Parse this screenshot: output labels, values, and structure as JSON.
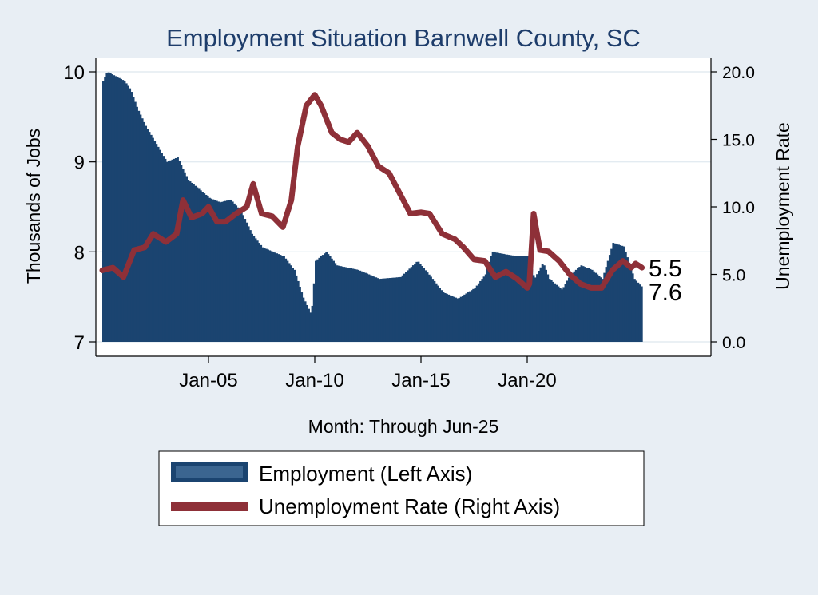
{
  "chart_data": {
    "type": "bar+line",
    "title": "Employment Situation Barnwell  County, SC",
    "xlabel": "Month: Through Jun-25",
    "ylabel_left": "Thousands of Jobs",
    "ylabel_right": "Unemployment Rate",
    "x_ticks": [
      "Jan-05",
      "Jan-10",
      "Jan-15",
      "Jan-20"
    ],
    "y_left_ticks": [
      "7",
      "8",
      "9",
      "10"
    ],
    "y_right_ticks": [
      "0.0",
      "5.0",
      "10.0",
      "15.0",
      "20.0"
    ],
    "ylim_left": [
      7,
      10.2
    ],
    "ylim_right": [
      0,
      20.5
    ],
    "x_range_years": [
      2000.0,
      2025.5
    ],
    "grid": true,
    "legend": {
      "position": "bottom",
      "entries": [
        "Employment (Left Axis)",
        "Unemployment Rate (Right Axis)"
      ]
    },
    "end_labels": {
      "unemployment": "5.5",
      "employment": "7.6"
    },
    "colors": {
      "employment": "#1b4470",
      "unemployment": "#8e3038",
      "title": "#1e3d6b",
      "background": "#e8eef4",
      "plot": "#ffffff"
    },
    "series": [
      {
        "name": "Employment (Left Axis)",
        "axis": "left",
        "points": [
          [
            2000.0,
            9.9
          ],
          [
            2000.2,
            10.0
          ],
          [
            2001.0,
            9.9
          ],
          [
            2001.3,
            9.8
          ],
          [
            2001.6,
            9.6
          ],
          [
            2002.0,
            9.4
          ],
          [
            2002.5,
            9.2
          ],
          [
            2003.0,
            9.0
          ],
          [
            2003.5,
            9.05
          ],
          [
            2004.0,
            8.8
          ],
          [
            2004.5,
            8.7
          ],
          [
            2005.0,
            8.6
          ],
          [
            2005.5,
            8.55
          ],
          [
            2006.0,
            8.58
          ],
          [
            2006.5,
            8.45
          ],
          [
            2007.0,
            8.2
          ],
          [
            2007.5,
            8.05
          ],
          [
            2008.0,
            8.0
          ],
          [
            2008.5,
            7.95
          ],
          [
            2009.0,
            7.8
          ],
          [
            2009.4,
            7.5
          ],
          [
            2009.8,
            7.3
          ],
          [
            2010.0,
            7.9
          ],
          [
            2010.5,
            8.0
          ],
          [
            2011.0,
            7.85
          ],
          [
            2012.0,
            7.8
          ],
          [
            2012.5,
            7.75
          ],
          [
            2013.0,
            7.7
          ],
          [
            2014.0,
            7.72
          ],
          [
            2014.8,
            7.9
          ],
          [
            2015.5,
            7.7
          ],
          [
            2016.0,
            7.55
          ],
          [
            2016.7,
            7.48
          ],
          [
            2017.5,
            7.6
          ],
          [
            2018.0,
            7.75
          ],
          [
            2018.3,
            8.0
          ],
          [
            2019.0,
            7.97
          ],
          [
            2019.5,
            7.95
          ],
          [
            2020.0,
            7.95
          ],
          [
            2020.3,
            7.7
          ],
          [
            2020.7,
            7.88
          ],
          [
            2021.0,
            7.7
          ],
          [
            2021.6,
            7.58
          ],
          [
            2022.0,
            7.75
          ],
          [
            2022.5,
            7.85
          ],
          [
            2023.0,
            7.8
          ],
          [
            2023.5,
            7.7
          ],
          [
            2024.0,
            8.1
          ],
          [
            2024.5,
            8.06
          ],
          [
            2025.0,
            7.7
          ],
          [
            2025.4,
            7.6
          ]
        ]
      },
      {
        "name": "Unemployment Rate (Right Axis)",
        "axis": "right",
        "points": [
          [
            2000.0,
            5.3
          ],
          [
            2000.5,
            5.5
          ],
          [
            2001.0,
            4.8
          ],
          [
            2001.5,
            6.8
          ],
          [
            2002.0,
            7.0
          ],
          [
            2002.4,
            8.0
          ],
          [
            2003.0,
            7.4
          ],
          [
            2003.5,
            8.0
          ],
          [
            2003.8,
            10.5
          ],
          [
            2004.2,
            9.2
          ],
          [
            2004.7,
            9.5
          ],
          [
            2005.0,
            10.0
          ],
          [
            2005.4,
            8.9
          ],
          [
            2005.8,
            8.9
          ],
          [
            2006.3,
            9.5
          ],
          [
            2006.8,
            10.0
          ],
          [
            2007.1,
            11.7
          ],
          [
            2007.5,
            9.5
          ],
          [
            2008.0,
            9.3
          ],
          [
            2008.5,
            8.5
          ],
          [
            2008.9,
            10.5
          ],
          [
            2009.2,
            14.5
          ],
          [
            2009.6,
            17.5
          ],
          [
            2010.0,
            18.3
          ],
          [
            2010.3,
            17.5
          ],
          [
            2010.8,
            15.5
          ],
          [
            2011.2,
            15.0
          ],
          [
            2011.6,
            14.8
          ],
          [
            2012.0,
            15.5
          ],
          [
            2012.5,
            14.5
          ],
          [
            2013.0,
            13.0
          ],
          [
            2013.5,
            12.5
          ],
          [
            2014.0,
            11.0
          ],
          [
            2014.5,
            9.5
          ],
          [
            2015.0,
            9.6
          ],
          [
            2015.4,
            9.5
          ],
          [
            2016.0,
            8.0
          ],
          [
            2016.6,
            7.6
          ],
          [
            2017.0,
            7.0
          ],
          [
            2017.5,
            6.1
          ],
          [
            2018.0,
            6.0
          ],
          [
            2018.5,
            4.8
          ],
          [
            2019.0,
            5.2
          ],
          [
            2019.5,
            4.7
          ],
          [
            2020.0,
            4.0
          ],
          [
            2020.1,
            4.3
          ],
          [
            2020.3,
            9.5
          ],
          [
            2020.6,
            6.8
          ],
          [
            2021.0,
            6.7
          ],
          [
            2021.5,
            6.0
          ],
          [
            2022.0,
            5.0
          ],
          [
            2022.5,
            4.3
          ],
          [
            2023.0,
            4.0
          ],
          [
            2023.5,
            4.0
          ],
          [
            2024.0,
            5.3
          ],
          [
            2024.5,
            6.0
          ],
          [
            2024.9,
            5.5
          ],
          [
            2025.1,
            5.8
          ],
          [
            2025.4,
            5.5
          ]
        ]
      }
    ]
  }
}
